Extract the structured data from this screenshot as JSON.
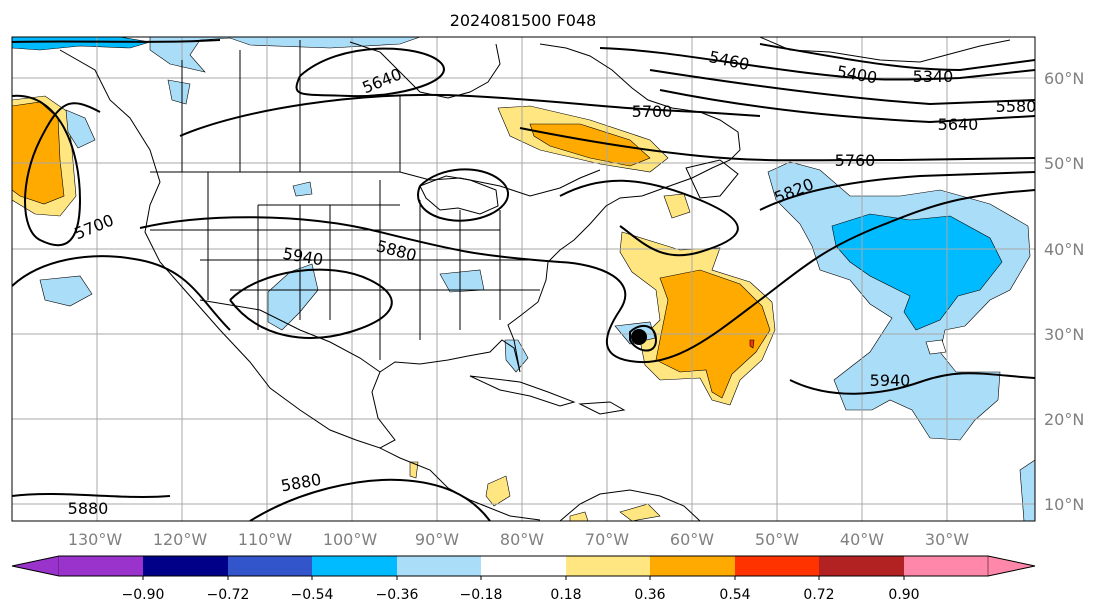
{
  "title": "2024081500 F048",
  "longitude_labels": [
    "130°W",
    "120°W",
    "110°W",
    "100°W",
    "90°W",
    "80°W",
    "70°W",
    "60°W",
    "50°W",
    "40°W",
    "30°W"
  ],
  "latitude_labels": [
    "60°N",
    "50°N",
    "40°N",
    "30°N",
    "20°N",
    "10°N"
  ],
  "contour_labels": [
    {
      "id": "c5640a",
      "text": "5640"
    },
    {
      "id": "c5460",
      "text": "5460"
    },
    {
      "id": "c5400",
      "text": "5400"
    },
    {
      "id": "c5340",
      "text": "5340"
    },
    {
      "id": "c5580",
      "text": "5580"
    },
    {
      "id": "c5640b",
      "text": "5640"
    },
    {
      "id": "c5700a",
      "text": "5700"
    },
    {
      "id": "c5760",
      "text": "5760"
    },
    {
      "id": "c5820",
      "text": "5820"
    },
    {
      "id": "c5700b",
      "text": "5700"
    },
    {
      "id": "c5880a",
      "text": "5880"
    },
    {
      "id": "c5940a",
      "text": "5940"
    },
    {
      "id": "c5940b",
      "text": "5940"
    },
    {
      "id": "c5880b",
      "text": "5880"
    },
    {
      "id": "c5880c",
      "text": "5880"
    }
  ],
  "colorbar": {
    "tick_labels": [
      "−0.90",
      "−0.72",
      "−0.54",
      "−0.36",
      "−0.18",
      "0.18",
      "0.36",
      "0.54",
      "0.72",
      "0.90"
    ],
    "colors": [
      "#9933cc",
      "#000088",
      "#3355cc",
      "#00bbff",
      "#aaddf7",
      "#ffffff",
      "#ffe680",
      "#ffaa00",
      "#ff3300",
      "#b22222",
      "#ff88aa"
    ]
  },
  "shading_colors": {
    "light_blue": "#aaddf7",
    "blue": "#00bbff",
    "light_yellow": "#ffe680",
    "orange": "#ffaa00",
    "red": "#ff3300"
  }
}
